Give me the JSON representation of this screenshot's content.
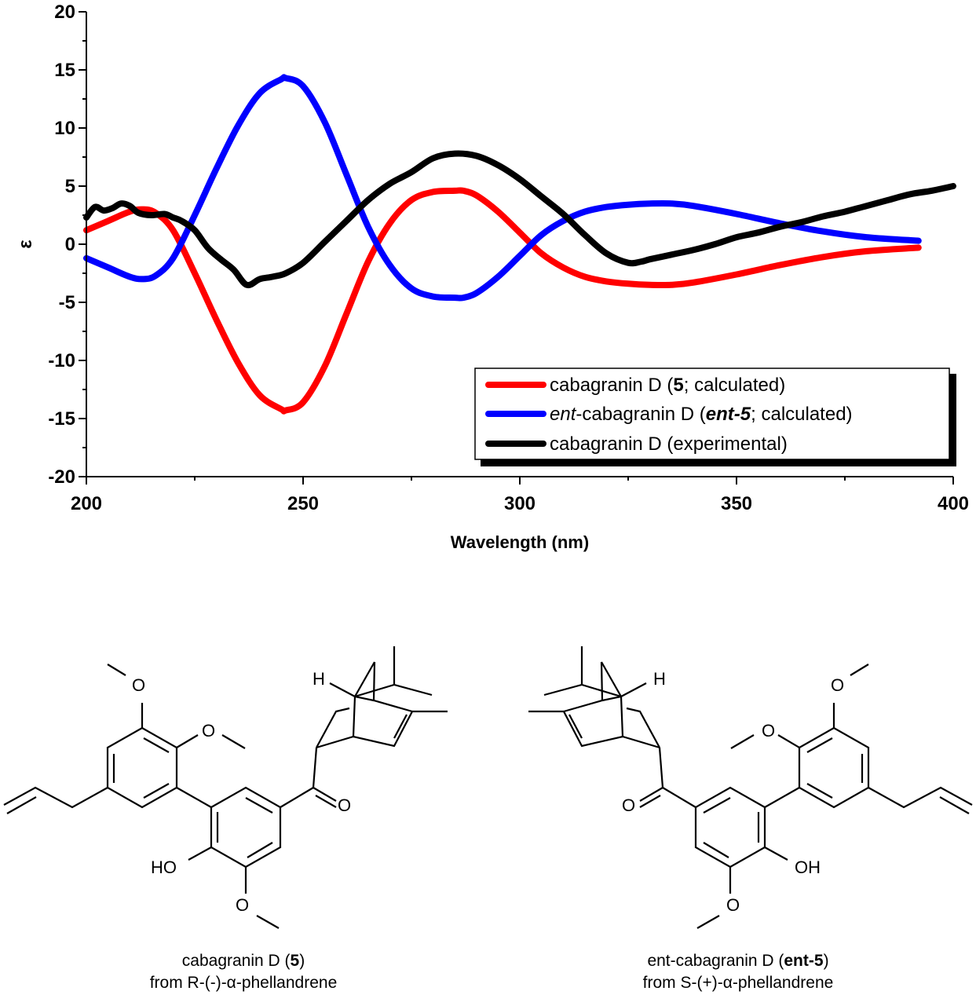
{
  "chart_data": {
    "type": "line",
    "title": "",
    "xlabel": "Wavelength (nm)",
    "ylabel": "ε",
    "xlim": [
      200,
      400
    ],
    "ylim": [
      -20,
      20
    ],
    "xticks": [
      200,
      250,
      300,
      350,
      400
    ],
    "yticks": [
      -20,
      -15,
      -10,
      -5,
      0,
      5,
      10,
      15,
      20
    ],
    "grid": false,
    "legend_position": "lower right (inside, boxed with drop shadow)",
    "series": [
      {
        "name": "cabagranin D (5; calculated)",
        "color": "#ff0000",
        "x": [
          200,
          205,
          210,
          213,
          216,
          220,
          225,
          230,
          235,
          240,
          245,
          246,
          250,
          255,
          260,
          265,
          270,
          275,
          280,
          285,
          287,
          290,
          295,
          300,
          305,
          310,
          315,
          320,
          325,
          330,
          335,
          340,
          350,
          360,
          370,
          380,
          392
        ],
        "y": [
          1.2,
          2.0,
          2.8,
          3.0,
          2.7,
          1.2,
          -2.5,
          -6.5,
          -10.2,
          -13.0,
          -14.2,
          -14.3,
          -13.6,
          -10.5,
          -6.0,
          -1.5,
          1.8,
          3.8,
          4.5,
          4.6,
          4.6,
          4.2,
          2.8,
          1.0,
          -0.8,
          -2.0,
          -2.8,
          -3.2,
          -3.4,
          -3.5,
          -3.5,
          -3.3,
          -2.6,
          -1.8,
          -1.1,
          -0.6,
          -0.3
        ]
      },
      {
        "name": "ent-cabagranin D (ent-5; calculated)",
        "color": "#0000ff",
        "x": [
          200,
          205,
          210,
          213,
          216,
          220,
          225,
          230,
          235,
          240,
          245,
          246,
          250,
          255,
          260,
          265,
          270,
          275,
          280,
          285,
          287,
          290,
          295,
          300,
          305,
          310,
          315,
          320,
          325,
          330,
          335,
          340,
          350,
          360,
          370,
          380,
          392
        ],
        "y": [
          -1.2,
          -2.0,
          -2.8,
          -3.0,
          -2.7,
          -1.2,
          2.5,
          6.5,
          10.2,
          13.0,
          14.2,
          14.3,
          13.6,
          10.5,
          6.0,
          1.5,
          -1.8,
          -3.8,
          -4.5,
          -4.6,
          -4.6,
          -4.2,
          -2.8,
          -1.0,
          0.8,
          2.0,
          2.8,
          3.2,
          3.4,
          3.5,
          3.5,
          3.3,
          2.6,
          1.8,
          1.1,
          0.6,
          0.3
        ]
      },
      {
        "name": "cabagranin D (experimental)",
        "color": "#000000",
        "x": [
          200,
          202,
          204,
          206,
          208,
          210,
          212,
          215,
          218,
          220,
          222,
          225,
          228,
          231,
          234,
          237,
          240,
          243,
          246,
          250,
          255,
          260,
          265,
          270,
          275,
          280,
          285,
          290,
          295,
          300,
          305,
          310,
          315,
          320,
          325,
          328,
          330,
          335,
          340,
          345,
          350,
          355,
          360,
          365,
          370,
          375,
          380,
          385,
          390,
          395,
          400
        ],
        "y": [
          2.3,
          3.2,
          2.9,
          3.1,
          3.5,
          3.3,
          2.7,
          2.5,
          2.6,
          2.3,
          2.0,
          1.2,
          -0.3,
          -1.3,
          -2.2,
          -3.5,
          -3.0,
          -2.8,
          -2.5,
          -1.6,
          0.2,
          2.0,
          3.8,
          5.2,
          6.2,
          7.4,
          7.8,
          7.6,
          6.8,
          5.6,
          4.1,
          2.6,
          0.8,
          -0.8,
          -1.6,
          -1.5,
          -1.3,
          -0.9,
          -0.5,
          0.0,
          0.6,
          1.0,
          1.5,
          1.9,
          2.4,
          2.8,
          3.3,
          3.8,
          4.3,
          4.6,
          5.0
        ]
      }
    ]
  },
  "legend": {
    "items": [
      {
        "prefix": "cabagranin D (",
        "bold": "5",
        "suffix": "; calculated)",
        "italic_prefix": ""
      },
      {
        "italic_prefix": "ent",
        "prefix": "-cabagranin D (",
        "bold": "ent-5",
        "suffix": "; calculated)"
      },
      {
        "prefix": "cabagranin D (experimental)",
        "bold": "",
        "suffix": "",
        "italic_prefix": ""
      }
    ]
  },
  "structures": {
    "left": {
      "caption_line1_prefix": "cabagranin D (",
      "caption_line1_bold": "5",
      "caption_line1_suffix": ")",
      "caption_line2": "from R-(-)-α-phellandrene",
      "atom_labels": {
        "ho": "HO",
        "o_carbonyl": "O",
        "h": "H",
        "o1": "O",
        "o2": "O",
        "o3": "O"
      }
    },
    "right": {
      "caption_line1_prefix": "ent-cabagranin D (",
      "caption_line1_bold": "ent-5",
      "caption_line1_suffix": ")",
      "caption_line2": "from S-(+)-α-phellandrene",
      "atom_labels": {
        "oh": "OH",
        "o_carbonyl": "O",
        "h": "H",
        "o1": "O",
        "o2": "O",
        "o3": "O"
      }
    }
  }
}
